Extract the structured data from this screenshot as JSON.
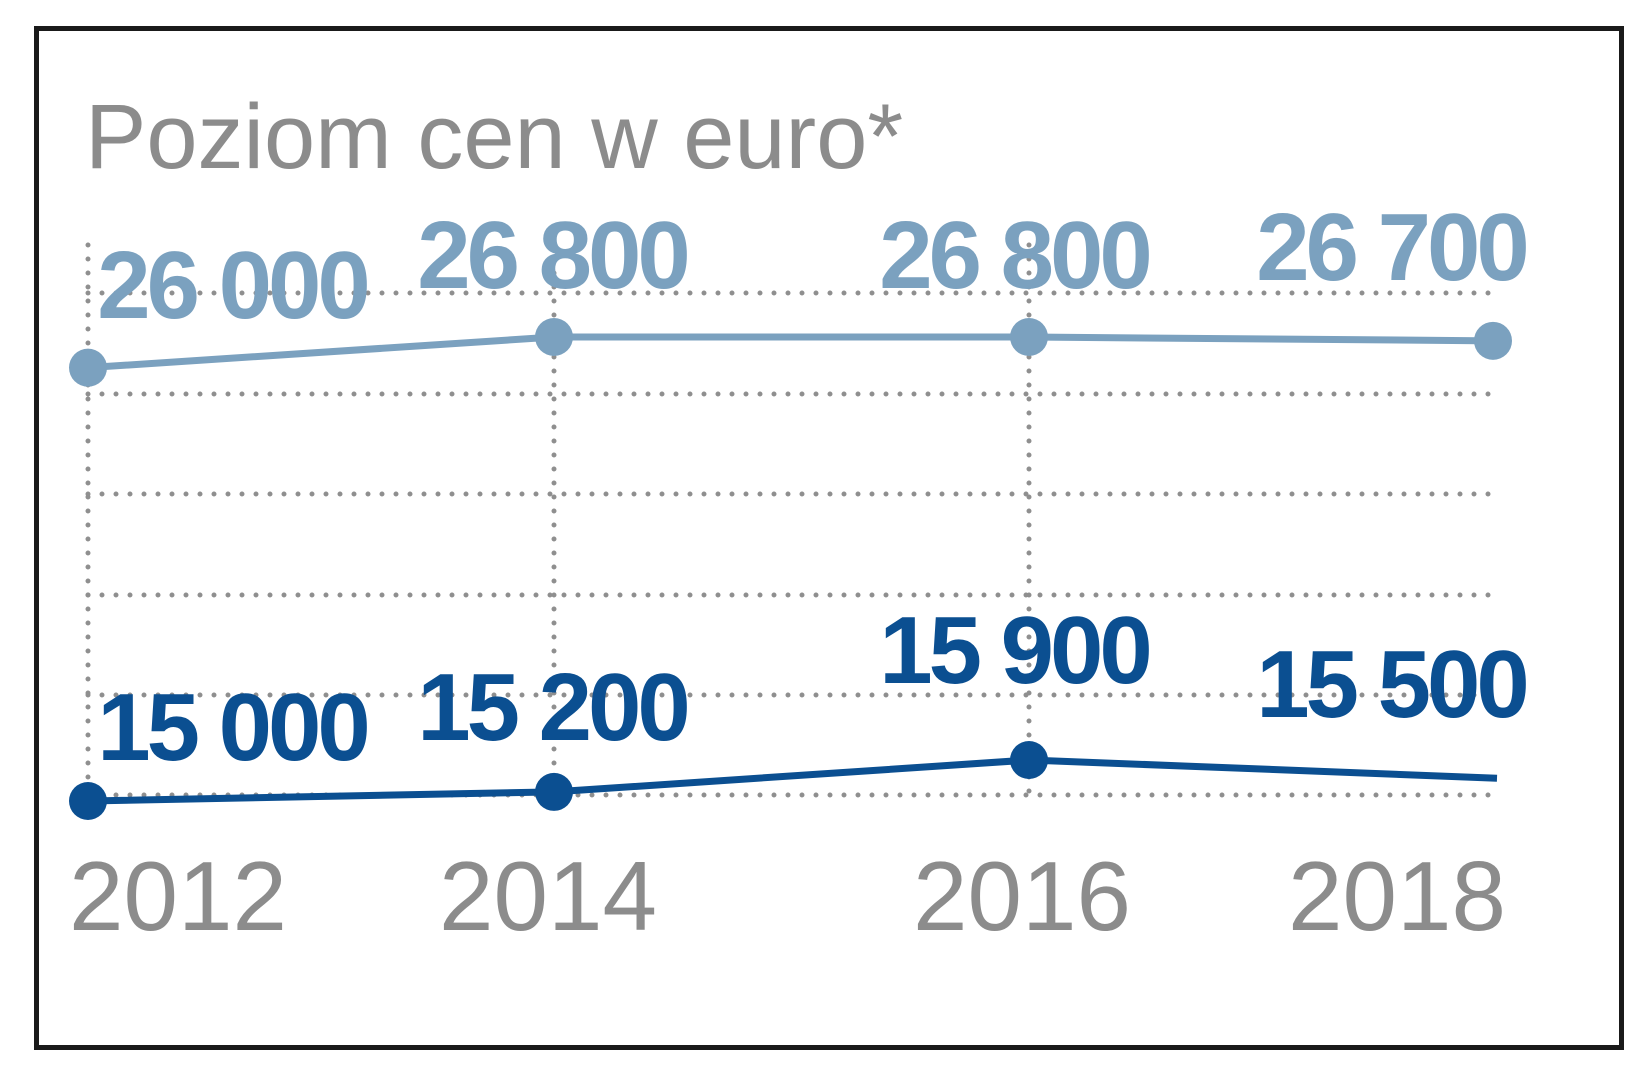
{
  "chart_data": {
    "type": "line",
    "title": "Poziom cen w euro*",
    "xlabel": "",
    "ylabel": "",
    "categories": [
      "2012",
      "2014",
      "2016",
      "2018"
    ],
    "x_tick_labels": [
      "2012",
      "2014",
      "2016",
      "2018"
    ],
    "grid": true,
    "legend": "none",
    "series": [
      {
        "values": [
          26000,
          26800,
          26800,
          26700
        ],
        "labels": [
          "26 000",
          "26 800",
          "26 800",
          "26 700"
        ],
        "color": "#7ba1bf"
      },
      {
        "values": [
          15000,
          15200,
          15900,
          15500
        ],
        "labels": [
          "15 000",
          "15 200",
          "15 900",
          "15 500"
        ],
        "color": "#0b4f91"
      }
    ]
  }
}
